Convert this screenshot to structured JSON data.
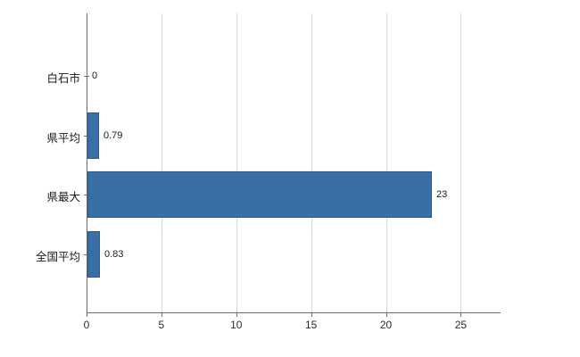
{
  "chart_data": {
    "type": "bar",
    "orientation": "horizontal",
    "title": "",
    "categories": [
      "白石市",
      "県平均",
      "県最大",
      "全国平均"
    ],
    "values": [
      0,
      0.79,
      23,
      0.83
    ],
    "value_labels": [
      "0",
      "0.79",
      "23",
      "0.83"
    ],
    "xlim": [
      0,
      27.6
    ],
    "xticks": [
      0,
      5,
      10,
      15,
      20,
      25
    ],
    "xtick_labels": [
      "0",
      "5",
      "10",
      "15",
      "20",
      "25"
    ],
    "grid": true,
    "legend": false,
    "bar_color": "#3a6fa5",
    "bar_border_color": "#2e5c8a",
    "gridline_color": "#d9d9d9",
    "axis_color": "#6e6e6e"
  }
}
